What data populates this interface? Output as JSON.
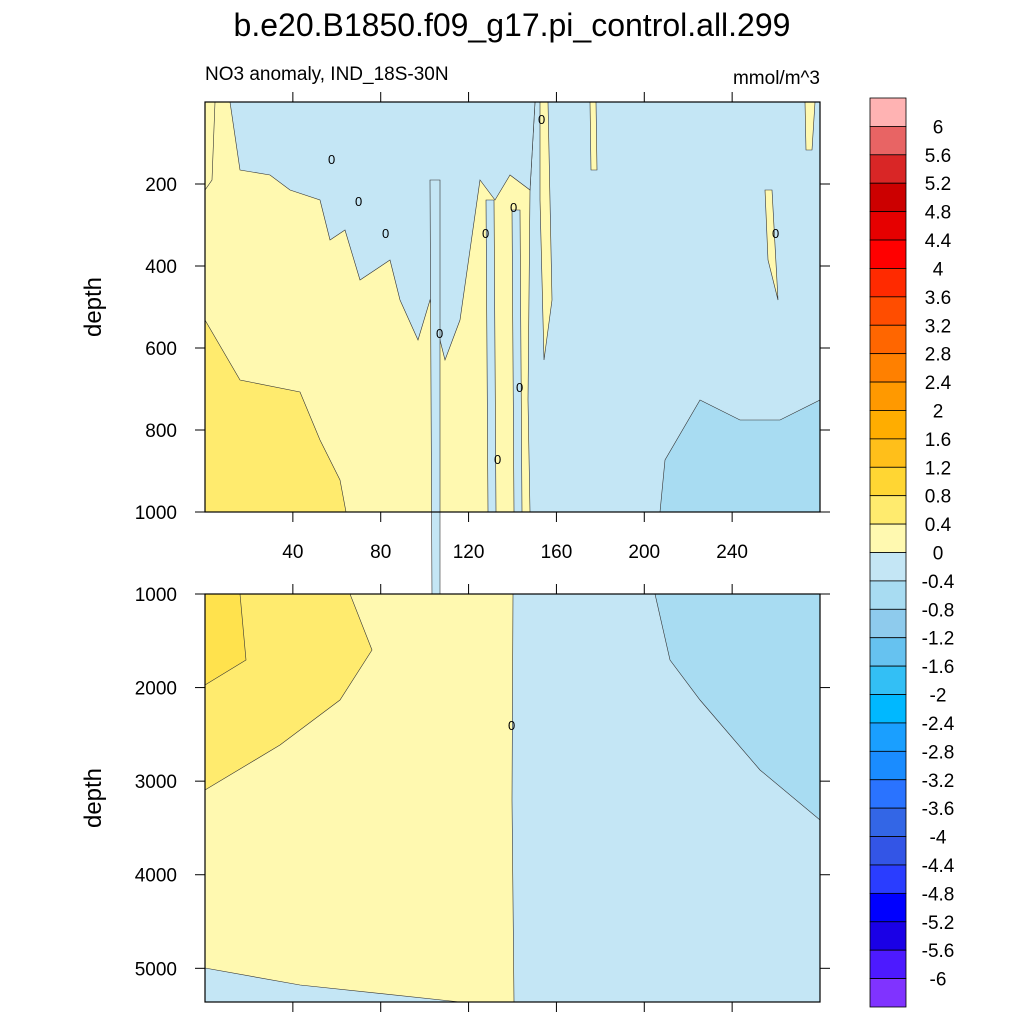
{
  "chart_data": [
    {
      "type": "contour",
      "title": "b.e20.B1850.f09_g17.pi_control.all.299",
      "subtitle": "NO3 anomaly, IND_18S-30N",
      "units": "mmol/m^3",
      "ylabel": "depth",
      "xlim": [
        0,
        280
      ],
      "xticks": [
        40,
        80,
        120,
        160,
        200,
        240
      ],
      "ylim": [
        0,
        1000
      ],
      "yticks": [
        200,
        400,
        600,
        800,
        1000
      ],
      "y_reversed": true,
      "contour_label": "0"
    },
    {
      "type": "contour",
      "ylabel": "depth",
      "xlim": [
        0,
        280
      ],
      "xticks": [
        40,
        80,
        120,
        160,
        200,
        240
      ],
      "ylim": [
        1000,
        5360
      ],
      "yticks": [
        1000,
        2000,
        3000,
        4000,
        5000
      ],
      "y_reversed": true,
      "contour_label": "0"
    }
  ],
  "colorbar": {
    "levels": [
      6,
      5.6,
      5.2,
      4.8,
      4.4,
      4,
      3.6,
      3.2,
      2.8,
      2.4,
      2,
      1.6,
      1.2,
      0.8,
      0.4,
      0,
      -0.4,
      -0.8,
      -1.2,
      -1.6,
      -2,
      -2.4,
      -2.8,
      -3.2,
      -3.6,
      -4,
      -4.4,
      -4.8,
      -5.2,
      -5.6,
      -6
    ],
    "colors": [
      "#ffb3b3",
      "#e86464",
      "#d92626",
      "#cc0000",
      "#e60000",
      "#ff0000",
      "#ff2a00",
      "#ff4d00",
      "#ff6600",
      "#ff8000",
      "#ff9900",
      "#ffad00",
      "#ffbf1a",
      "#ffd633",
      "#ffeb6e",
      "#fff9b0",
      "#c4e6f5",
      "#a8dcf2",
      "#8ecbed",
      "#66c2f0",
      "#33bff5",
      "#00b8ff",
      "#1a9fff",
      "#1a8cff",
      "#2a73ff",
      "#3366e6",
      "#3355e6",
      "#2a3dff",
      "#0000ff",
      "#1a00e6",
      "#4d1aff",
      "#8033ff"
    ]
  }
}
